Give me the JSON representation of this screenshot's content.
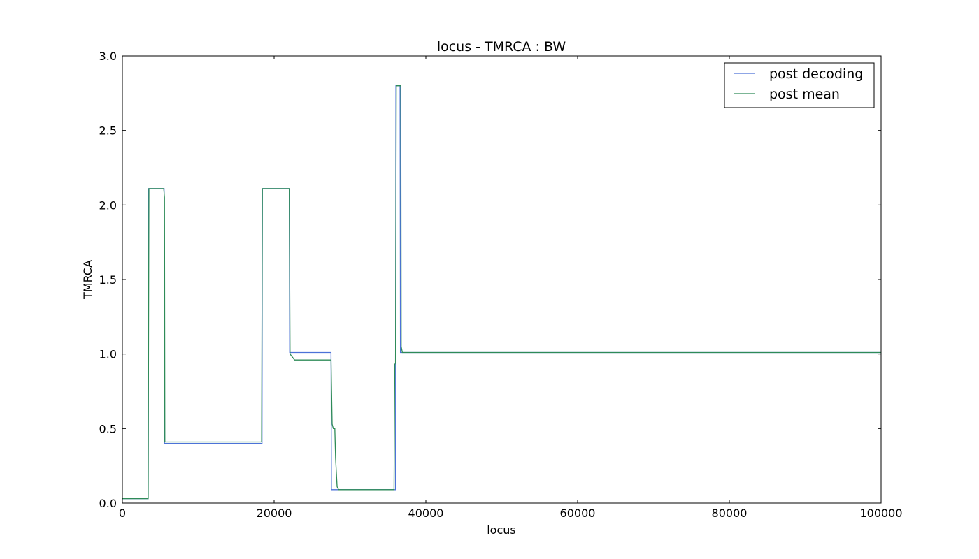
{
  "chart_data": {
    "type": "line",
    "title": "locus - TMRCA : BW",
    "xlabel": "locus",
    "ylabel": "TMRCA",
    "xlim": [
      0,
      100000
    ],
    "ylim": [
      0,
      3.0
    ],
    "xticks": [
      0,
      20000,
      40000,
      60000,
      80000,
      100000
    ],
    "xtick_labels": [
      "0",
      "20000",
      "40000",
      "60000",
      "80000",
      "100000"
    ],
    "yticks": [
      0,
      0.5,
      1.0,
      1.5,
      2.0,
      2.5,
      3.0
    ],
    "ytick_labels": [
      "0.0",
      "0.5",
      "1.0",
      "1.5",
      "2.0",
      "2.5",
      "3.0"
    ],
    "grid": false,
    "legend_position": "top-right",
    "series": [
      {
        "name": "post decoding",
        "color": "#4c72d8",
        "points": [
          [
            0,
            0.03
          ],
          [
            3400,
            0.03
          ],
          [
            3450,
            2.11
          ],
          [
            5500,
            2.11
          ],
          [
            5550,
            0.4
          ],
          [
            18400,
            0.4
          ],
          [
            18450,
            2.11
          ],
          [
            22000,
            2.11
          ],
          [
            22050,
            1.01
          ],
          [
            27500,
            1.01
          ],
          [
            27550,
            0.09
          ],
          [
            36000,
            0.09
          ],
          [
            36050,
            2.8
          ],
          [
            36600,
            2.8
          ],
          [
            36650,
            1.01
          ],
          [
            100000,
            1.01
          ]
        ]
      },
      {
        "name": "post mean",
        "color": "#2e8b57",
        "points": [
          [
            0,
            0.03
          ],
          [
            3400,
            0.03
          ],
          [
            3500,
            2.11
          ],
          [
            5450,
            2.11
          ],
          [
            5550,
            2.05
          ],
          [
            5600,
            0.41
          ],
          [
            18350,
            0.41
          ],
          [
            18450,
            2.11
          ],
          [
            22000,
            2.11
          ],
          [
            22100,
            1.0
          ],
          [
            22400,
            0.98
          ],
          [
            22700,
            0.96
          ],
          [
            27500,
            0.96
          ],
          [
            27650,
            0.53
          ],
          [
            27800,
            0.5
          ],
          [
            28000,
            0.5
          ],
          [
            28100,
            0.3
          ],
          [
            28300,
            0.11
          ],
          [
            28500,
            0.09
          ],
          [
            35800,
            0.09
          ],
          [
            35900,
            0.93
          ],
          [
            36000,
            0.94
          ],
          [
            36100,
            2.8
          ],
          [
            36700,
            2.8
          ],
          [
            36750,
            1.05
          ],
          [
            36900,
            1.01
          ],
          [
            100000,
            1.01
          ]
        ]
      }
    ]
  }
}
